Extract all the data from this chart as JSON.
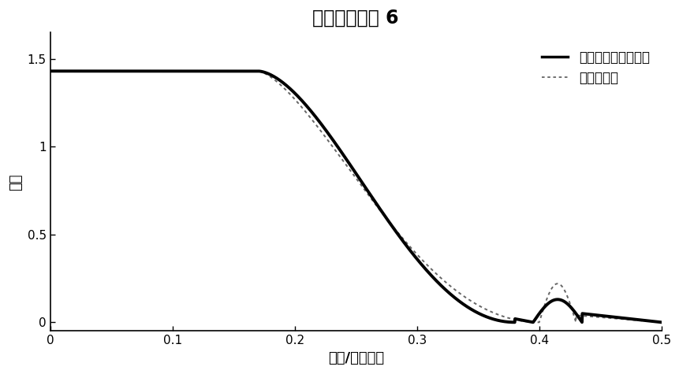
{
  "title": "滤波器长度为 6",
  "xlabel": "频率/采样频率",
  "ylabel": "幅值",
  "xlim": [
    0,
    0.5
  ],
  "ylim": [
    -0.05,
    1.65
  ],
  "xticks": [
    0,
    0.1,
    0.2,
    0.3,
    0.4,
    0.5
  ],
  "yticks": [
    0,
    0.5,
    1,
    1.5
  ],
  "legend1": "一本发明提出的方法",
  "legend2": "一遗传算法",
  "background_color": "#ffffff",
  "line1_color": "#000000",
  "line2_color": "#666666",
  "title_fontsize": 17,
  "label_fontsize": 13,
  "tick_fontsize": 11
}
